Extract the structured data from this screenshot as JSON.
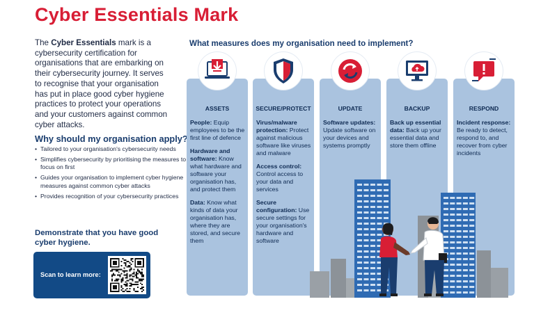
{
  "title": "Cyber Essentials Mark",
  "intro": {
    "prefix": "The ",
    "brand": "Cyber Essentials",
    "text": " mark is a cybersecurity certification for organisations that are embarking on their cybersecurity journey. It serves to recognise that your organisation has put in place good cyber hygiene practices to protect your operations and your customers against common cyber attacks."
  },
  "why": {
    "title": "Why should my organisation apply?",
    "items": [
      "Tailored to your organisation's cybersecurity needs",
      "Simplifies cybersecurity by prioritising the measures to focus on first",
      "Guides your organisation to implement cyber hygiene measures against common cyber attacks",
      "Provides recognition of your cybersecurity practices"
    ]
  },
  "demonstrate": "Demonstrate that you have good cyber hygiene.",
  "scan": {
    "label": "Scan to learn more:"
  },
  "measures_title": "What measures does my organisation need to implement?",
  "columns": [
    {
      "heading": "ASSETS",
      "icon": "laptop-download-icon",
      "items": [
        {
          "bold": "People:",
          "text": " Equip employees to be the first line of defence"
        },
        {
          "bold": "Hardware and software:",
          "text": " Know what hardware and software your organisation has, and protect them"
        },
        {
          "bold": "Data:",
          "text": " Know what kinds of data your organisation has, where they are stored, and secure them"
        }
      ]
    },
    {
      "heading": "SECURE/PROTECT",
      "icon": "shield-icon",
      "items": [
        {
          "bold": "Virus/malware protection:",
          "text": " Protect against malicious software like viruses and malware"
        },
        {
          "bold": "Access control:",
          "text": " Control access to your data and services"
        },
        {
          "bold": "Secure configuration:",
          "text": " Use secure settings for your organisation's hardware and software"
        }
      ]
    },
    {
      "heading": "UPDATE",
      "icon": "refresh-icon",
      "items": [
        {
          "bold": "Software updates:",
          "text": " Update software on your devices and systems promptly"
        }
      ]
    },
    {
      "heading": "BACKUP",
      "icon": "cloud-backup-icon",
      "items": [
        {
          "bold": "Back up essential data:",
          "text": " Back up your essential data and store them offline"
        }
      ]
    },
    {
      "heading": "RESPOND",
      "icon": "alert-message-icon",
      "items": [
        {
          "bold": "Incident response:",
          "text": " Be ready to detect, respond to, and recover from cyber incidents"
        }
      ]
    }
  ],
  "colors": {
    "title_red": "#d81e35",
    "navy": "#1a3d6e",
    "column_blue": "#aac3df",
    "scan_box": "#124a86"
  }
}
